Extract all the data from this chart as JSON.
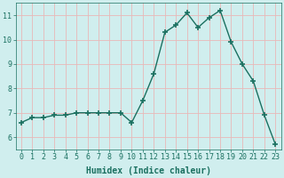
{
  "x": [
    0,
    1,
    2,
    3,
    4,
    5,
    6,
    7,
    8,
    9,
    10,
    11,
    12,
    13,
    14,
    15,
    16,
    17,
    18,
    19,
    20,
    21,
    22,
    23
  ],
  "y": [
    6.6,
    6.8,
    6.8,
    6.9,
    6.9,
    7.0,
    7.0,
    7.0,
    7.0,
    7.0,
    6.6,
    7.5,
    8.6,
    10.3,
    10.6,
    11.1,
    10.5,
    10.9,
    11.2,
    9.9,
    9.0,
    8.3,
    6.9,
    5.7
  ],
  "line_color": "#1a7060",
  "marker": "+",
  "marker_size": 4,
  "marker_lw": 1.2,
  "bg_color": "#d0eeee",
  "grid_color": "#e8b8b8",
  "xlabel": "Humidex (Indice chaleur)",
  "xlim": [
    -0.5,
    23.5
  ],
  "ylim": [
    5.5,
    11.5
  ],
  "yticks": [
    6,
    7,
    8,
    9,
    10,
    11
  ],
  "xticks": [
    0,
    1,
    2,
    3,
    4,
    5,
    6,
    7,
    8,
    9,
    10,
    11,
    12,
    13,
    14,
    15,
    16,
    17,
    18,
    19,
    20,
    21,
    22,
    23
  ],
  "xtick_labels": [
    "0",
    "1",
    "2",
    "3",
    "4",
    "5",
    "6",
    "7",
    "8",
    "9",
    "10",
    "11",
    "12",
    "13",
    "14",
    "15",
    "16",
    "17",
    "18",
    "19",
    "20",
    "21",
    "22",
    "23"
  ],
  "tick_color": "#1a7060",
  "label_fontsize": 7.0,
  "tick_fontsize": 6.0,
  "line_width": 1.0
}
